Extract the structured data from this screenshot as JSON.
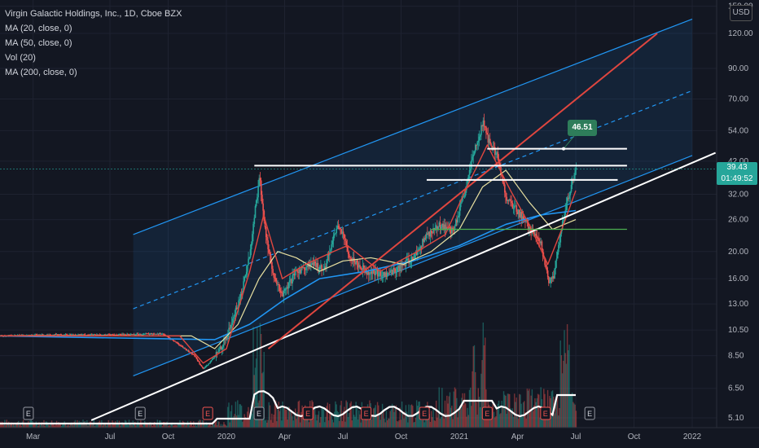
{
  "legend": {
    "title": "Virgin Galactic Holdings, Inc., 1D, Cboe BZX",
    "ma20": "MA (20, close, 0)",
    "ma50": "MA (50, close, 0)",
    "vol": "Vol (20)",
    "ma200": "MA (200, close, 0)"
  },
  "currency_button": "USD",
  "last_price": {
    "value": "39.43",
    "countdown": "01:49:52"
  },
  "callout_label": "46.51",
  "earnings_marker_label": "E",
  "colors": {
    "background": "#131722",
    "up": "#26a69a",
    "down": "#ef5350",
    "channel": "#2196f3",
    "trend_red": "#e0463f",
    "ma20": "#e0463f",
    "ma50": "#e8e0a0",
    "ma200": "#2196f3",
    "support_green": "#4caf50"
  },
  "chart_data": {
    "type": "candlestick",
    "title": "Virgin Galactic Holdings, Inc., 1D, Cboe BZX",
    "y_scale": "log",
    "y_ticks": [
      "150.00",
      "120.00",
      "90.00",
      "70.00",
      "54.00",
      "42.00",
      "32.00",
      "26.00",
      "20.00",
      "16.00",
      "13.00",
      "10.50",
      "8.50",
      "6.50",
      "5.10"
    ],
    "x_ticks": [
      "Mar",
      "Jul",
      "Oct",
      "2020",
      "Apr",
      "Jul",
      "Oct",
      "2021",
      "Apr",
      "Jul",
      "Oct",
      "2022"
    ],
    "x_tick_values": [
      2019.17,
      2019.5,
      2019.75,
      2020.0,
      2020.25,
      2020.5,
      2020.75,
      2021.0,
      2021.25,
      2021.5,
      2021.75,
      2022.0
    ],
    "price_path": [
      [
        2019.0,
        10.0
      ],
      [
        2019.25,
        10.1
      ],
      [
        2019.5,
        10.1
      ],
      [
        2019.72,
        10.2
      ],
      [
        2019.78,
        9.5
      ],
      [
        2019.86,
        8.5
      ],
      [
        2019.9,
        7.6
      ],
      [
        2019.95,
        8.5
      ],
      [
        2020.0,
        10.0
      ],
      [
        2020.06,
        14.0
      ],
      [
        2020.1,
        20.0
      ],
      [
        2020.12,
        28.0
      ],
      [
        2020.14,
        37.0
      ],
      [
        2020.16,
        25.0
      ],
      [
        2020.2,
        16.0
      ],
      [
        2020.24,
        14.0
      ],
      [
        2020.3,
        17.0
      ],
      [
        2020.36,
        18.0
      ],
      [
        2020.42,
        17.5
      ],
      [
        2020.46,
        23.0
      ],
      [
        2020.48,
        25.0
      ],
      [
        2020.53,
        19.0
      ],
      [
        2020.6,
        17.0
      ],
      [
        2020.68,
        16.5
      ],
      [
        2020.74,
        17.5
      ],
      [
        2020.8,
        19.0
      ],
      [
        2020.86,
        23.0
      ],
      [
        2020.92,
        25.0
      ],
      [
        2020.97,
        23.5
      ],
      [
        2021.02,
        32.0
      ],
      [
        2021.06,
        45.0
      ],
      [
        2021.1,
        58.0
      ],
      [
        2021.12,
        50.0
      ],
      [
        2021.16,
        44.0
      ],
      [
        2021.2,
        31.0
      ],
      [
        2021.26,
        27.0
      ],
      [
        2021.3,
        24.0
      ],
      [
        2021.35,
        21.0
      ],
      [
        2021.38,
        15.5
      ],
      [
        2021.4,
        16.0
      ],
      [
        2021.42,
        20.0
      ],
      [
        2021.44,
        25.0
      ],
      [
        2021.46,
        30.0
      ],
      [
        2021.48,
        35.0
      ],
      [
        2021.5,
        39.43
      ]
    ],
    "volume_spikes": [
      2020.12,
      2020.15,
      2021.06,
      2021.1,
      2021.44,
      2021.46
    ],
    "earnings_dates": [
      2019.15,
      2019.63,
      2019.92,
      2020.14,
      2020.35,
      2020.6,
      2020.85,
      2021.12,
      2021.37
    ],
    "horizontal_levels": [
      {
        "price": 46.51,
        "from": 2021.12,
        "to": 2021.72,
        "color": "white"
      },
      {
        "price": 40.5,
        "from": 2020.12,
        "to": 2021.72,
        "color": "white"
      },
      {
        "price": 36.0,
        "from": 2020.86,
        "to": 2021.68,
        "color": "white"
      },
      {
        "price": 24.0,
        "from": 2020.88,
        "to": 2021.72,
        "color": "green"
      }
    ],
    "trendlines": [
      {
        "name": "support",
        "from": [
          2019.42,
          5.0
        ],
        "to": [
          2022.1,
          45.0
        ],
        "color": "white"
      },
      {
        "name": "breakout",
        "from": [
          2020.18,
          9.0
        ],
        "to": [
          2021.85,
          120.0
        ],
        "color": "red"
      }
    ],
    "channel": {
      "from": 2019.6,
      "to": 2022.0,
      "upper": [
        23.0,
        135.0
      ],
      "mid": [
        12.5,
        75.0
      ],
      "lower": [
        7.2,
        44.0
      ]
    },
    "ma_lines": {
      "ma20": [
        [
          2019.0,
          10.0
        ],
        [
          2019.8,
          10.0
        ],
        [
          2019.9,
          8.0
        ],
        [
          2020.0,
          9.0
        ],
        [
          2020.1,
          17.0
        ],
        [
          2020.16,
          27.0
        ],
        [
          2020.24,
          16.0
        ],
        [
          2020.34,
          18.0
        ],
        [
          2020.46,
          20.0
        ],
        [
          2020.52,
          21.0
        ],
        [
          2020.66,
          17.0
        ],
        [
          2020.82,
          20.0
        ],
        [
          2020.94,
          23.0
        ],
        [
          2021.04,
          35.0
        ],
        [
          2021.12,
          48.0
        ],
        [
          2021.22,
          33.0
        ],
        [
          2021.3,
          25.0
        ],
        [
          2021.38,
          18.0
        ],
        [
          2021.44,
          24.0
        ],
        [
          2021.5,
          33.0
        ]
      ],
      "ma50": [
        [
          2019.0,
          10.0
        ],
        [
          2019.85,
          10.0
        ],
        [
          2019.95,
          9.0
        ],
        [
          2020.05,
          11.0
        ],
        [
          2020.14,
          16.0
        ],
        [
          2020.22,
          20.0
        ],
        [
          2020.3,
          19.0
        ],
        [
          2020.4,
          17.0
        ],
        [
          2020.5,
          18.5
        ],
        [
          2020.62,
          19.0
        ],
        [
          2020.76,
          18.0
        ],
        [
          2020.88,
          20.0
        ],
        [
          2021.0,
          24.0
        ],
        [
          2021.1,
          34.0
        ],
        [
          2021.2,
          39.0
        ],
        [
          2021.3,
          30.0
        ],
        [
          2021.4,
          24.0
        ],
        [
          2021.5,
          26.0
        ]
      ],
      "ma200": [
        [
          2019.0,
          10.0
        ],
        [
          2019.95,
          9.7
        ],
        [
          2020.1,
          11.0
        ],
        [
          2020.25,
          13.5
        ],
        [
          2020.4,
          16.0
        ],
        [
          2020.6,
          17.0
        ],
        [
          2020.8,
          18.5
        ],
        [
          2021.0,
          21.0
        ],
        [
          2021.2,
          25.0
        ],
        [
          2021.35,
          27.0
        ],
        [
          2021.5,
          28.0
        ]
      ]
    }
  }
}
